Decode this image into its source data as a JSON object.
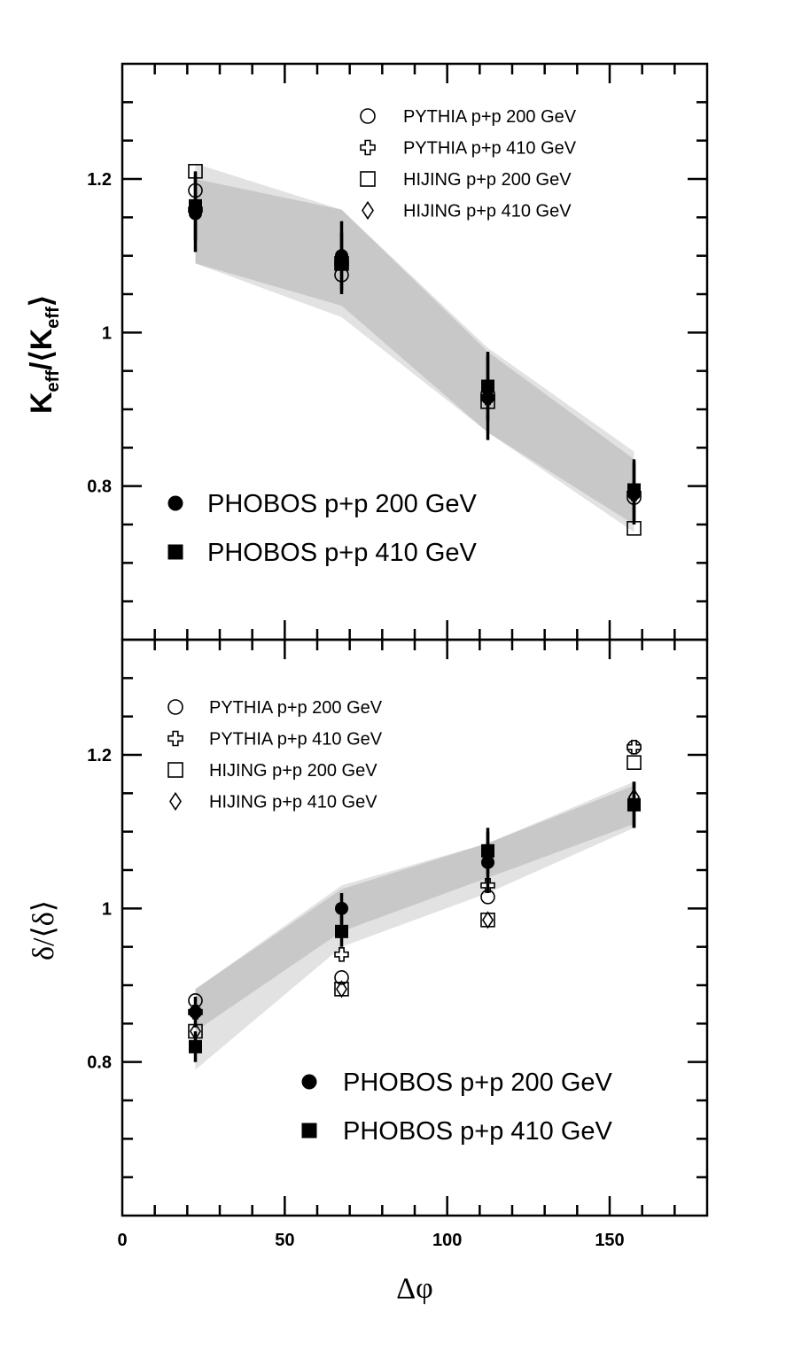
{
  "colors": {
    "band_outer": "#e2e2e2",
    "band_inner": "#c8c8c8",
    "ink": "#000000"
  },
  "chart_data": [
    {
      "type": "scatter",
      "panel": "top",
      "ylabel": {
        "main": "K",
        "sub": "eff",
        "mid": "/⟨K",
        "sub2": "eff",
        "end": "⟩"
      },
      "xlim": [
        0,
        180
      ],
      "ylim": [
        0.6,
        1.35
      ],
      "y_ticks": [
        0.8,
        1,
        1.2
      ],
      "y_tick_labels": [
        "0.8",
        "1",
        "1.2"
      ],
      "legend_small": [
        "PYTHIA p+p 200 GeV",
        "PYTHIA p+p 410 GeV",
        "HIJING p+p 200 GeV",
        "HIJING p+p 410 GeV"
      ],
      "legend_big": [
        "PHOBOS p+p 200 GeV",
        "PHOBOS p+p 410 GeV"
      ],
      "band_outer": {
        "x": [
          22.5,
          67.5,
          112.5,
          157.5
        ],
        "low": [
          1.09,
          1.02,
          0.87,
          0.74
        ],
        "high": [
          1.22,
          1.16,
          0.98,
          0.845
        ]
      },
      "band_inner": {
        "x": [
          22.5,
          67.5,
          112.5,
          157.5
        ],
        "low": [
          1.09,
          1.035,
          0.87,
          0.75
        ],
        "high": [
          1.2,
          1.16,
          0.975,
          0.835
        ]
      },
      "series": [
        {
          "name": "PHOBOS p+p 200 GeV",
          "marker": "filled-circle",
          "x": [
            22.5,
            67.5,
            112.5,
            157.5
          ],
          "y": [
            1.155,
            1.1,
            0.915,
            0.79
          ],
          "err": [
            0.05,
            0.045,
            0.055,
            0.04
          ]
        },
        {
          "name": "PHOBOS p+p 410 GeV",
          "marker": "filled-square",
          "x": [
            22.5,
            67.5,
            112.5,
            157.5
          ],
          "y": [
            1.165,
            1.09,
            0.93,
            0.795
          ],
          "err": [
            0.045,
            0.04,
            0.045,
            0.04
          ]
        },
        {
          "name": "PYTHIA p+p 200 GeV",
          "marker": "open-circle",
          "x": [
            22.5,
            67.5,
            112.5,
            157.5
          ],
          "y": [
            1.185,
            1.075,
            0.92,
            0.785
          ]
        },
        {
          "name": "PYTHIA p+p 410 GeV",
          "marker": "open-cross",
          "x": [
            22.5,
            67.5,
            112.5,
            157.5
          ],
          "y": [
            1.16,
            1.09,
            0.915,
            0.79
          ]
        },
        {
          "name": "HIJING p+p 200 GeV",
          "marker": "open-square",
          "x": [
            22.5,
            67.5,
            112.5,
            157.5
          ],
          "y": [
            1.21,
            1.09,
            0.91,
            0.745
          ]
        },
        {
          "name": "HIJING p+p 410 GeV",
          "marker": "open-diamond",
          "x": [
            22.5,
            67.5,
            112.5,
            157.5
          ],
          "y": [
            1.16,
            1.09,
            0.915,
            0.79
          ]
        }
      ]
    },
    {
      "type": "scatter",
      "panel": "bottom",
      "ylabel": "δ/⟨δ⟩",
      "xlabel": "Δφ",
      "xlim": [
        0,
        180
      ],
      "ylim": [
        0.6,
        1.35
      ],
      "x_ticks": [
        0,
        50,
        100,
        150
      ],
      "x_tick_labels": [
        "0",
        "50",
        "100",
        "150"
      ],
      "y_ticks": [
        0.8,
        1,
        1.2
      ],
      "y_tick_labels": [
        "0.8",
        "1",
        "1.2"
      ],
      "legend_small": [
        "PYTHIA p+p 200 GeV",
        "PYTHIA p+p 410 GeV",
        "HIJING p+p 200 GeV",
        "HIJING p+p 410 GeV"
      ],
      "legend_big": [
        "PHOBOS p+p 200 GeV",
        "PHOBOS p+p 410 GeV"
      ],
      "band_outer": {
        "x": [
          22.5,
          67.5,
          112.5,
          157.5
        ],
        "low": [
          0.79,
          0.95,
          1.02,
          1.105
        ],
        "high": [
          0.895,
          1.03,
          1.085,
          1.165
        ]
      },
      "band_inner": {
        "x": [
          22.5,
          67.5,
          112.5,
          157.5
        ],
        "low": [
          0.84,
          0.97,
          1.04,
          1.11
        ],
        "high": [
          0.895,
          1.025,
          1.085,
          1.16
        ]
      },
      "series": [
        {
          "name": "PHOBOS p+p 200 GeV",
          "marker": "filled-circle",
          "x": [
            22.5,
            67.5,
            112.5,
            157.5
          ],
          "y": [
            0.865,
            1.0,
            1.06,
            1.135
          ],
          "err": [
            0.02,
            0.02,
            0.04,
            0.03
          ]
        },
        {
          "name": "PHOBOS p+p 410 GeV",
          "marker": "filled-square",
          "x": [
            22.5,
            67.5,
            112.5,
            157.5
          ],
          "y": [
            0.82,
            0.97,
            1.075,
            1.135
          ],
          "err": [
            0.02,
            0.02,
            0.03,
            0.03
          ]
        },
        {
          "name": "PYTHIA p+p 200 GeV",
          "marker": "open-circle",
          "x": [
            22.5,
            67.5,
            112.5,
            157.5
          ],
          "y": [
            0.88,
            0.91,
            1.015,
            1.21
          ]
        },
        {
          "name": "PYTHIA p+p 410 GeV",
          "marker": "open-cross",
          "x": [
            22.5,
            67.5,
            112.5,
            157.5
          ],
          "y": [
            0.865,
            0.94,
            1.03,
            1.21
          ]
        },
        {
          "name": "HIJING p+p 200 GeV",
          "marker": "open-square",
          "x": [
            22.5,
            67.5,
            112.5,
            157.5
          ],
          "y": [
            0.84,
            0.895,
            0.985,
            1.19
          ]
        },
        {
          "name": "HIJING p+p 410 GeV",
          "marker": "open-diamond",
          "x": [
            22.5,
            67.5,
            112.5,
            157.5
          ],
          "y": [
            0.84,
            0.895,
            0.985,
            1.145
          ]
        }
      ]
    }
  ]
}
